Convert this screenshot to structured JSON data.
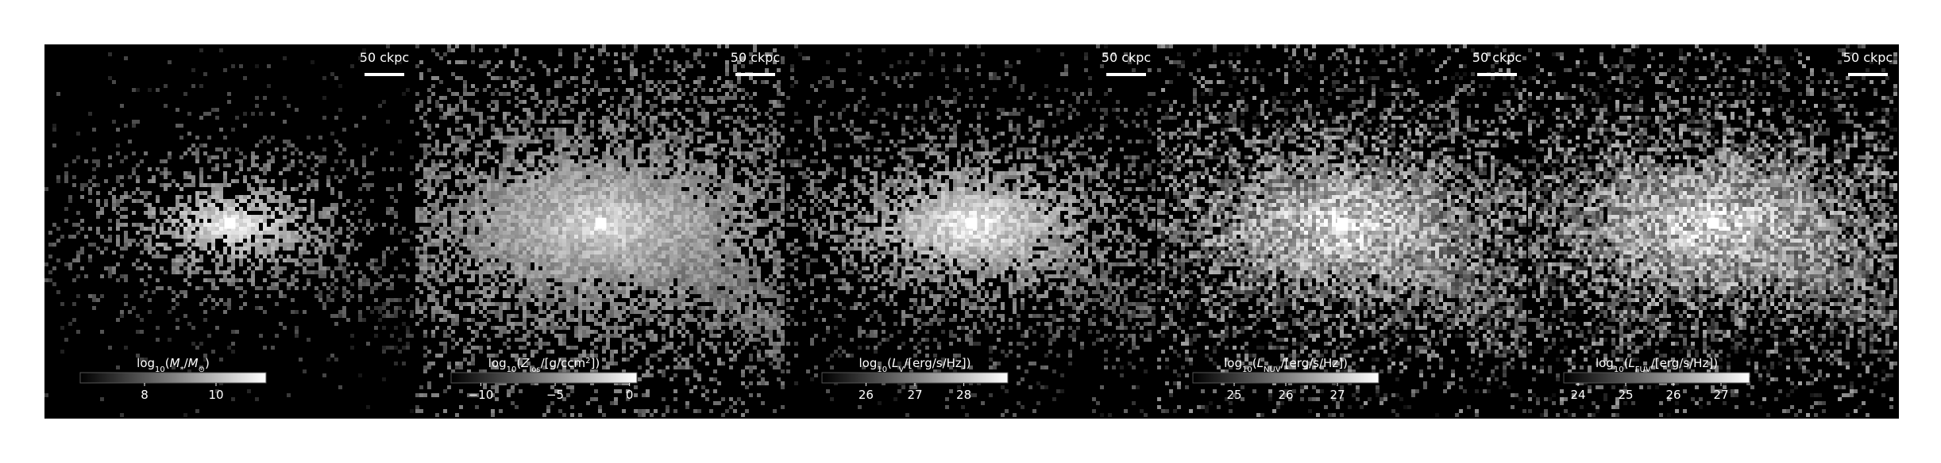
{
  "figure": {
    "background": "#ffffff",
    "panel_background": "#000000",
    "text_color": "#ffffff",
    "colormap": "gray"
  },
  "chart_data": [
    {
      "type": "heatmap",
      "scalebar_label": "50 ckpc",
      "colorbar": {
        "label_parts": [
          [
            "t",
            "log"
          ],
          [
            "sub",
            "10"
          ],
          [
            "t",
            "("
          ],
          [
            "it",
            "M"
          ],
          [
            "sub",
            "*"
          ],
          [
            "t",
            "/"
          ],
          [
            "it",
            "M"
          ],
          [
            "sub",
            "⊙"
          ],
          [
            "t",
            ")"
          ]
        ],
        "ticks": [
          8,
          10
        ],
        "tick_labels": [
          "8",
          "10"
        ],
        "range": [
          6.2,
          11.4
        ]
      },
      "image": {
        "core": 0.96,
        "spread": 0.34,
        "fill": 0.55,
        "base": 0.12,
        "noise": 0.22,
        "sharp": 2.2,
        "seed": 11
      }
    },
    {
      "type": "heatmap",
      "scalebar_label": "50 ckpc",
      "colorbar": {
        "label_parts": [
          [
            "t",
            "log"
          ],
          [
            "sub",
            "10"
          ],
          [
            "t",
            "("
          ],
          [
            "it",
            "Z"
          ],
          [
            "sub",
            "los"
          ],
          [
            "t",
            "/[g/ccm"
          ],
          [
            "sup",
            "2"
          ],
          [
            "t",
            "])"
          ]
        ],
        "ticks": [
          -10,
          -5,
          0
        ],
        "tick_labels": [
          "−10",
          "−5",
          "0"
        ],
        "range": [
          -12.0,
          0.5
        ]
      },
      "image": {
        "core": 0.9,
        "spread": 0.62,
        "fill": 0.86,
        "base": 0.38,
        "noise": 0.26,
        "sharp": 1.1,
        "seed": 23
      }
    },
    {
      "type": "heatmap",
      "scalebar_label": "50 ckpc",
      "colorbar": {
        "label_parts": [
          [
            "t",
            "log"
          ],
          [
            "sub",
            "10"
          ],
          [
            "t",
            "("
          ],
          [
            "it",
            "L"
          ],
          [
            "sub",
            "V"
          ],
          [
            "t",
            "/[erg/s/Hz])"
          ]
        ],
        "ticks": [
          26,
          27,
          28
        ],
        "tick_labels": [
          "26",
          "27",
          "28"
        ],
        "range": [
          25.1,
          28.9
        ]
      },
      "image": {
        "core": 0.97,
        "spread": 0.48,
        "fill": 0.72,
        "base": 0.18,
        "noise": 0.3,
        "sharp": 1.8,
        "seed": 37
      }
    },
    {
      "type": "heatmap",
      "scalebar_label": "50 ckpc",
      "colorbar": {
        "label_parts": [
          [
            "t",
            "log"
          ],
          [
            "sub",
            "10"
          ],
          [
            "t",
            "("
          ],
          [
            "it",
            "L"
          ],
          [
            "sub",
            "NUV"
          ],
          [
            "t",
            "/[erg/s/Hz])"
          ]
        ],
        "ticks": [
          25,
          26,
          27
        ],
        "tick_labels": [
          "25",
          "26",
          "27"
        ],
        "range": [
          24.2,
          27.8
        ]
      },
      "image": {
        "core": 0.9,
        "spread": 0.6,
        "fill": 0.84,
        "base": 0.3,
        "noise": 0.55,
        "sharp": 1.2,
        "seed": 53
      }
    },
    {
      "type": "heatmap",
      "scalebar_label": "50 ckpc",
      "colorbar": {
        "label_parts": [
          [
            "t",
            "log"
          ],
          [
            "sub",
            "10"
          ],
          [
            "t",
            "("
          ],
          [
            "it",
            "L"
          ],
          [
            "sub",
            "FUV"
          ],
          [
            "t",
            "/[erg/s/Hz])"
          ]
        ],
        "ticks": [
          24,
          25,
          26,
          27
        ],
        "tick_labels": [
          "24",
          "25",
          "26",
          "27"
        ],
        "range": [
          23.7,
          27.6
        ]
      },
      "image": {
        "core": 0.88,
        "spread": 0.62,
        "fill": 0.86,
        "base": 0.3,
        "noise": 0.58,
        "sharp": 1.2,
        "seed": 71
      }
    }
  ]
}
